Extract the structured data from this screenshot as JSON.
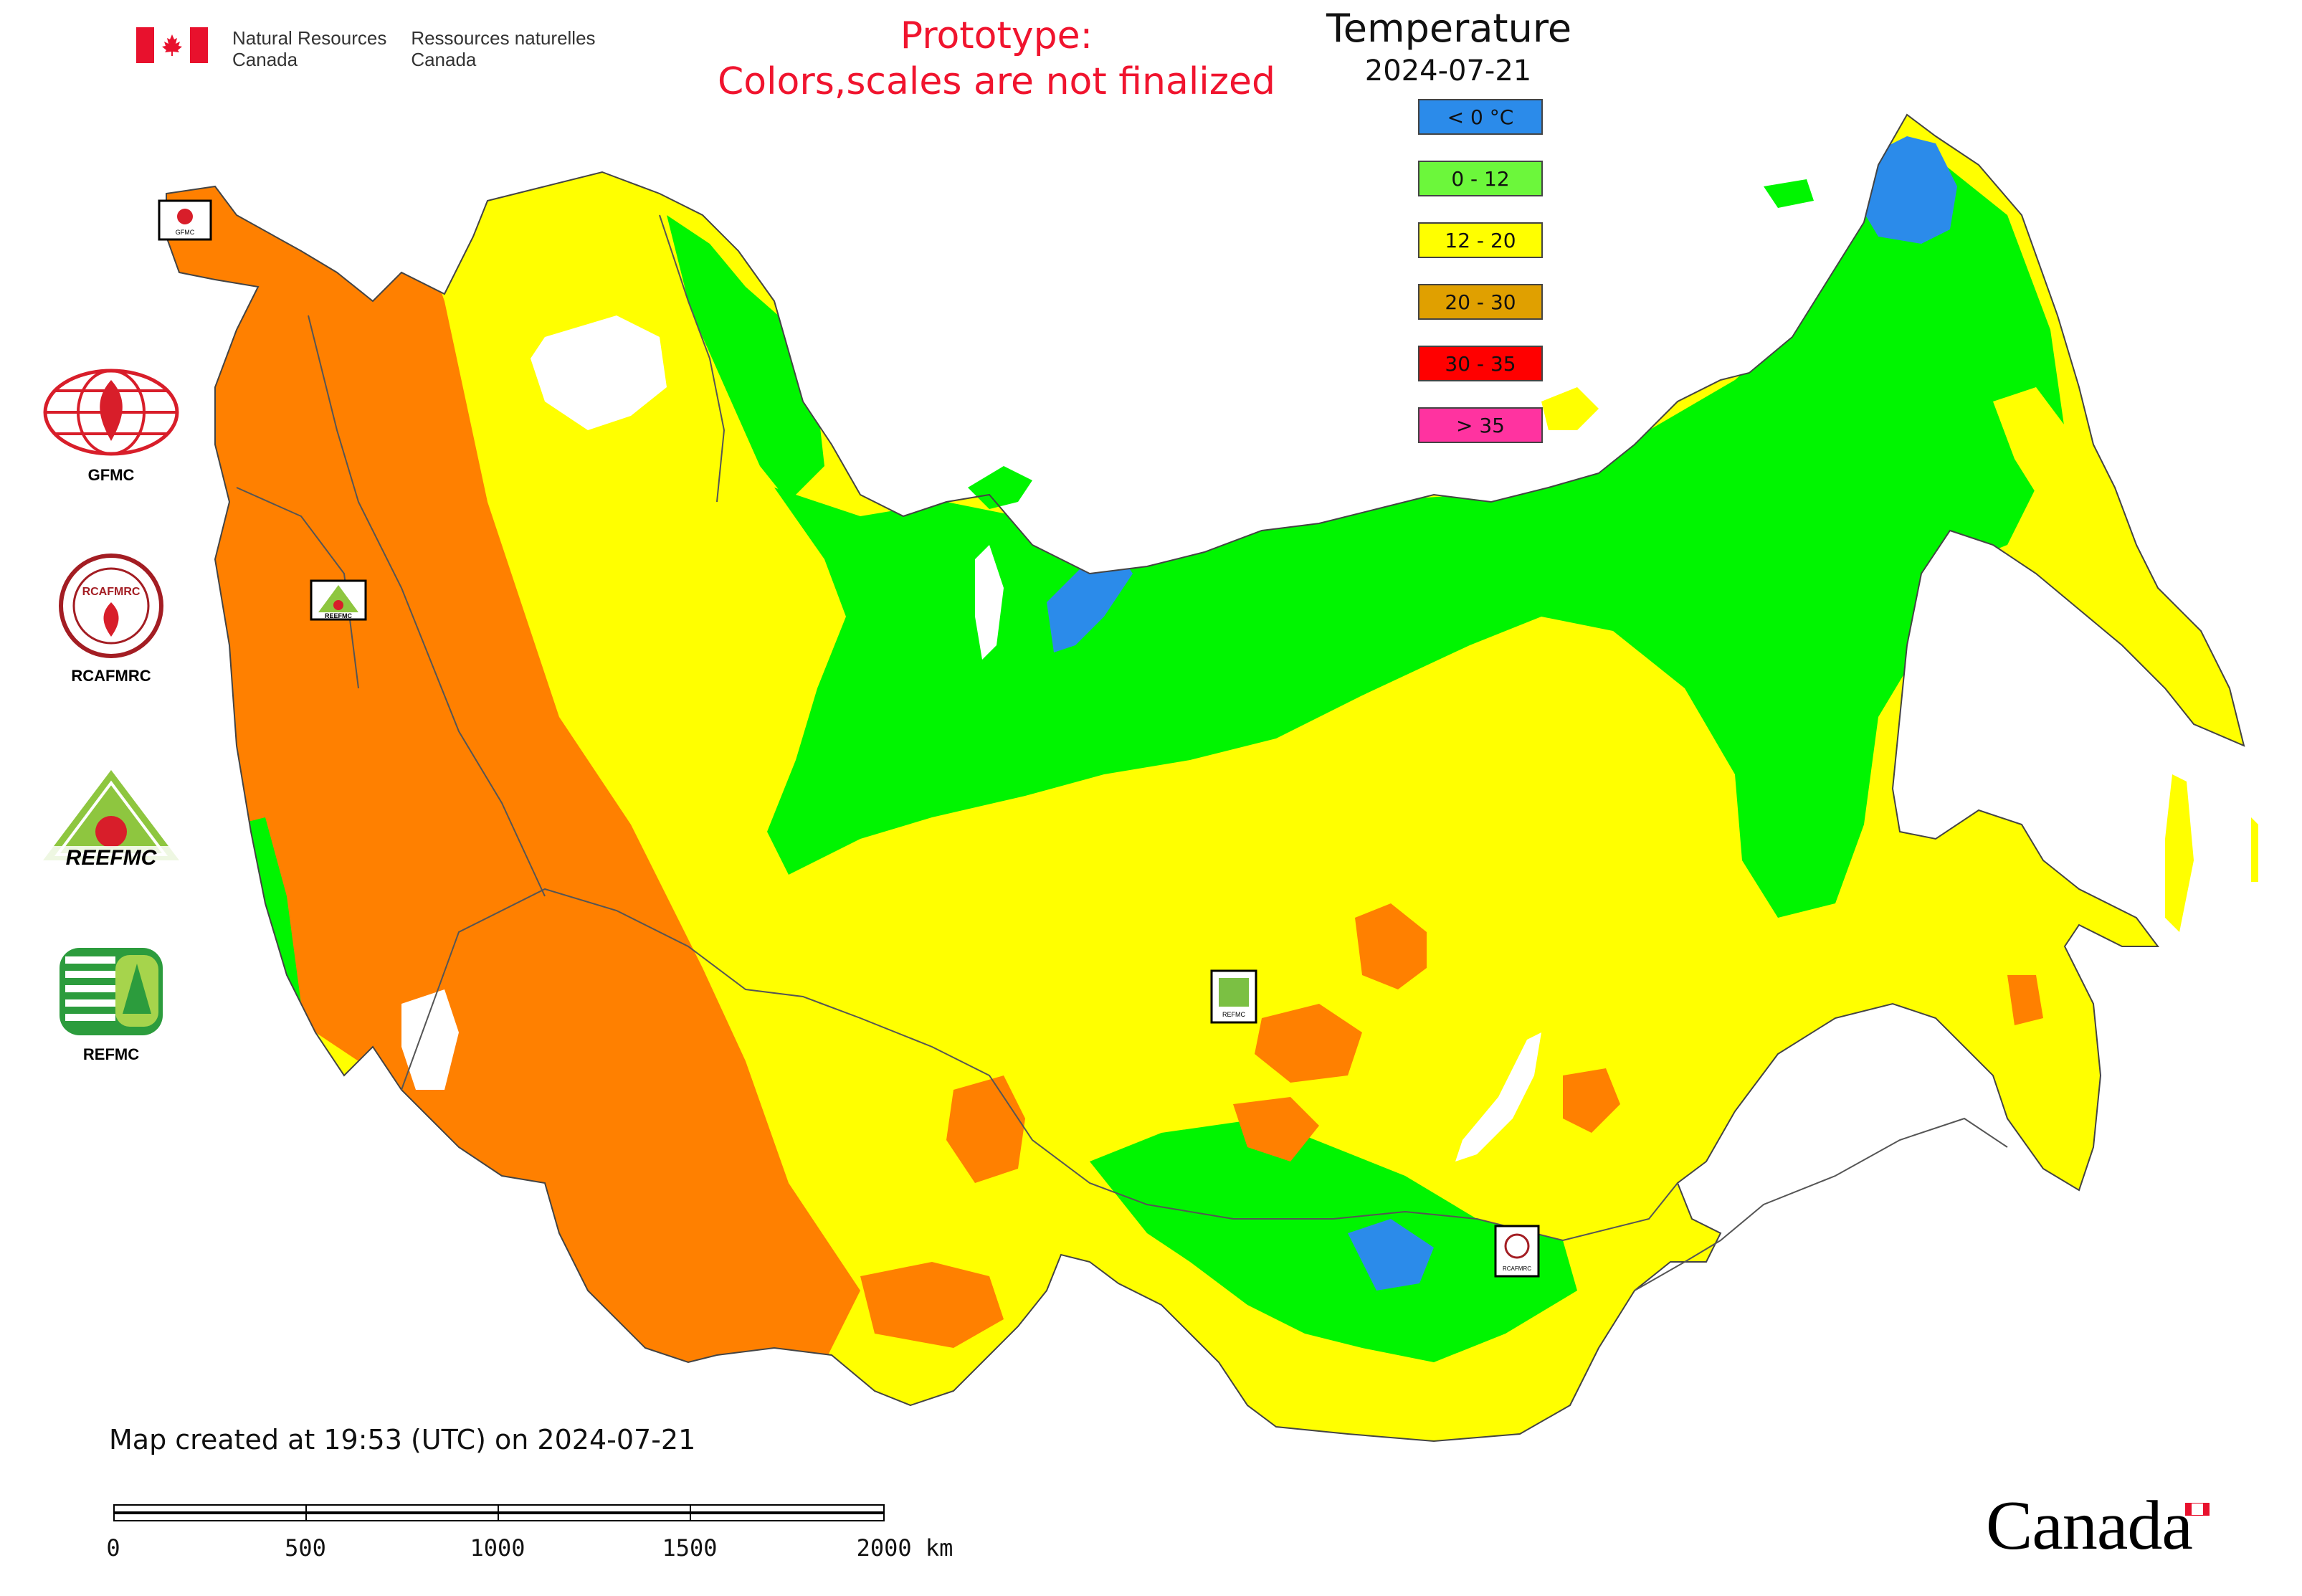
{
  "header": {
    "dept_en_line1": "Natural Resources",
    "dept_en_line2": "Canada",
    "dept_fr_line1": "Ressources naturelles",
    "dept_fr_line2": "Canada",
    "prototype_line1": "Prototype:",
    "prototype_line2": "Colors,scales are not finalized"
  },
  "legend": {
    "title": "Temperature",
    "date": "2024-07-21",
    "classes": [
      {
        "label": "< 0 °C",
        "color": "#2b8bea"
      },
      {
        "label": "0 - 12",
        "color": "#6cf73b"
      },
      {
        "label": "12 - 20",
        "color": "#ffff00"
      },
      {
        "label": "20 - 30",
        "color": "#e0a000"
      },
      {
        "label": "30 - 35",
        "color": "#ff0000"
      },
      {
        "label": "> 35",
        "color": "#ff33a0"
      }
    ]
  },
  "side_logos": {
    "gfmc": "GFMC",
    "rcafmrc": "RCAFMRC",
    "reefmc": "REFMC",
    "reefmc_text": "REEFMC",
    "rcafmrc_text": "RCAFMRC"
  },
  "map": {
    "colors": {
      "hot": "#ff8000",
      "warm": "#ffff00",
      "cool": "#00f500",
      "cold": "#2b8bea",
      "water": "#ffffff",
      "border": "#444444"
    },
    "markers": [
      {
        "id": "gfmc",
        "label": "GFMC"
      },
      {
        "id": "reefmc",
        "label": "REEFMC"
      },
      {
        "id": "refmc",
        "label": "REFMC"
      },
      {
        "id": "rcafmrc",
        "label": "RCAFMRC"
      }
    ]
  },
  "footer": {
    "created": "Map created at 19:53 (UTC) on 2024-07-21",
    "scale_ticks": [
      "0",
      "500",
      "1000",
      "1500",
      "2000 km"
    ],
    "wordmark": "Canada"
  }
}
